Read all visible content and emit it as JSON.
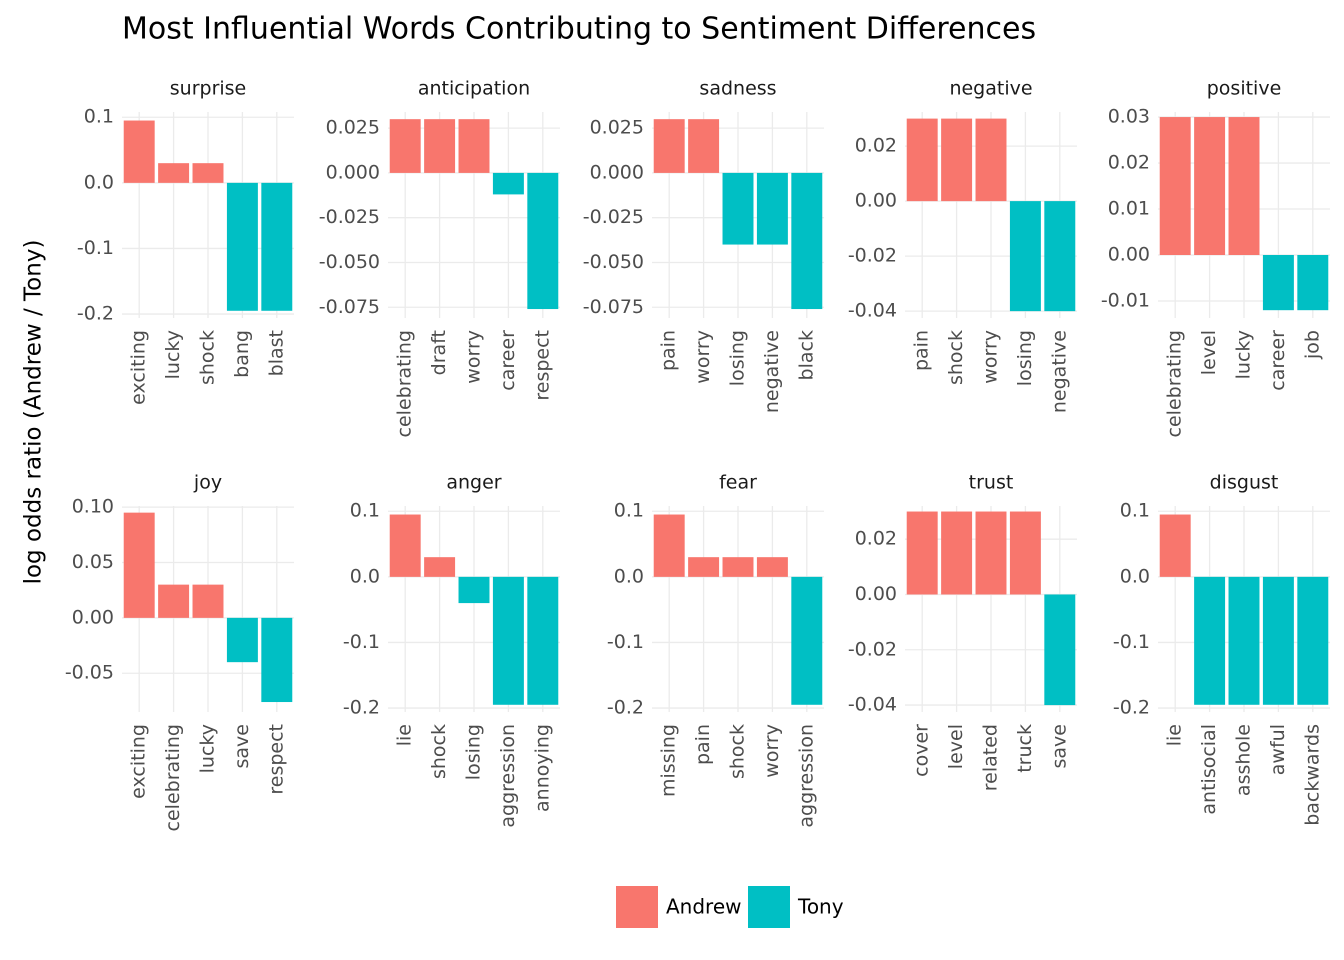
{
  "title": "Most Influential Words Contributing to Sentiment Differences",
  "y_label": "log odds ratio (Andrew / Tony)",
  "chart_data": [
    {
      "type": "bar",
      "title": "surprise",
      "categories": [
        "exciting",
        "lucky",
        "shock",
        "bang",
        "blast"
      ],
      "series": [
        {
          "name": "Andrew",
          "color": "#F8766D",
          "values": [
            0.095,
            0.03,
            0.03,
            null,
            null
          ]
        },
        {
          "name": "Tony",
          "color": "#00BFC4",
          "values": [
            null,
            null,
            null,
            -0.195,
            -0.195
          ]
        }
      ],
      "ylim": [
        -0.206,
        0.108
      ],
      "yticks": [
        0.1,
        {
          "value": 0,
          "label": "0.0"
        },
        -0.1,
        -0.2
      ]
    },
    {
      "type": "bar",
      "title": "anticipation",
      "categories": [
        "celebrating",
        "draft",
        "worry",
        "career",
        "respect"
      ],
      "series": [
        {
          "name": "Andrew",
          "color": "#F8766D",
          "values": [
            0.03,
            0.03,
            0.03,
            null,
            null
          ]
        },
        {
          "name": "Tony",
          "color": "#00BFC4",
          "values": [
            null,
            null,
            null,
            -0.012,
            -0.076
          ]
        }
      ],
      "ylim": [
        -0.081,
        0.034
      ],
      "yticks": [
        0.025,
        {
          "value": 0,
          "label": "0.000"
        },
        -0.025,
        {
          "value": -0.05,
          "label": "-0.050"
        },
        -0.075
      ]
    },
    {
      "type": "bar",
      "title": "sadness",
      "categories": [
        "pain",
        "worry",
        "losing",
        "negative",
        "black"
      ],
      "series": [
        {
          "name": "Andrew",
          "color": "#F8766D",
          "values": [
            0.03,
            0.03,
            null,
            null,
            null
          ]
        },
        {
          "name": "Tony",
          "color": "#00BFC4",
          "values": [
            null,
            null,
            -0.04,
            -0.04,
            -0.076
          ]
        }
      ],
      "ylim": [
        -0.081,
        0.034
      ],
      "yticks": [
        0.025,
        {
          "value": 0,
          "label": "0.000"
        },
        -0.025,
        {
          "value": -0.05,
          "label": "-0.050"
        },
        -0.075
      ]
    },
    {
      "type": "bar",
      "title": "negative",
      "categories": [
        "pain",
        "shock",
        "worry",
        "losing",
        "negative"
      ],
      "series": [
        {
          "name": "Andrew",
          "color": "#F8766D",
          "values": [
            0.03,
            0.03,
            0.03,
            null,
            null
          ]
        },
        {
          "name": "Tony",
          "color": "#00BFC4",
          "values": [
            null,
            null,
            null,
            -0.04,
            -0.04
          ]
        }
      ],
      "ylim": [
        -0.0425,
        0.0324
      ],
      "yticks": [
        0.02,
        {
          "value": 0,
          "label": "0.00"
        },
        -0.02,
        -0.04
      ]
    },
    {
      "type": "bar",
      "title": "positive",
      "categories": [
        "celebrating",
        "level",
        "lucky",
        "career",
        "job"
      ],
      "series": [
        {
          "name": "Andrew",
          "color": "#F8766D",
          "values": [
            0.03,
            0.03,
            0.03,
            null,
            null
          ]
        },
        {
          "name": "Tony",
          "color": "#00BFC4",
          "values": [
            null,
            null,
            null,
            -0.012,
            -0.012
          ]
        }
      ],
      "ylim": [
        -0.0137,
        0.0311
      ],
      "yticks": [
        0.03,
        0.02,
        0.01,
        {
          "value": 0,
          "label": "0.00"
        },
        -0.01
      ]
    },
    {
      "type": "bar",
      "title": "joy",
      "categories": [
        "exciting",
        "celebrating",
        "lucky",
        "save",
        "respect"
      ],
      "series": [
        {
          "name": "Andrew",
          "color": "#F8766D",
          "values": [
            0.095,
            0.03,
            0.03,
            null,
            null
          ]
        },
        {
          "name": "Tony",
          "color": "#00BFC4",
          "values": [
            null,
            null,
            null,
            -0.04,
            -0.076
          ]
        }
      ],
      "ylim": [
        -0.085,
        0.101
      ],
      "yticks": [
        {
          "value": 0.1,
          "label": "0.10"
        },
        0.05,
        {
          "value": 0,
          "label": "0.00"
        },
        -0.05
      ]
    },
    {
      "type": "bar",
      "title": "anger",
      "categories": [
        "lie",
        "shock",
        "losing",
        "aggression",
        "annoying"
      ],
      "series": [
        {
          "name": "Andrew",
          "color": "#F8766D",
          "values": [
            0.095,
            0.03,
            null,
            null,
            null
          ]
        },
        {
          "name": "Tony",
          "color": "#00BFC4",
          "values": [
            null,
            null,
            -0.04,
            -0.195,
            -0.195
          ]
        }
      ],
      "ylim": [
        -0.206,
        0.108
      ],
      "yticks": [
        0.1,
        {
          "value": 0,
          "label": "0.0"
        },
        -0.1,
        -0.2
      ]
    },
    {
      "type": "bar",
      "title": "fear",
      "categories": [
        "missing",
        "pain",
        "shock",
        "worry",
        "aggression"
      ],
      "series": [
        {
          "name": "Andrew",
          "color": "#F8766D",
          "values": [
            0.095,
            0.03,
            0.03,
            0.03,
            null
          ]
        },
        {
          "name": "Tony",
          "color": "#00BFC4",
          "values": [
            null,
            null,
            null,
            null,
            -0.195
          ]
        }
      ],
      "ylim": [
        -0.206,
        0.108
      ],
      "yticks": [
        0.1,
        {
          "value": 0,
          "label": "0.0"
        },
        -0.1,
        -0.2
      ]
    },
    {
      "type": "bar",
      "title": "trust",
      "categories": [
        "cover",
        "level",
        "related",
        "truck",
        "save"
      ],
      "series": [
        {
          "name": "Andrew",
          "color": "#F8766D",
          "values": [
            0.03,
            0.03,
            0.03,
            0.03,
            null
          ]
        },
        {
          "name": "Tony",
          "color": "#00BFC4",
          "values": [
            null,
            null,
            null,
            null,
            -0.04
          ]
        }
      ],
      "ylim": [
        -0.0425,
        0.032
      ],
      "yticks": [
        0.02,
        {
          "value": 0,
          "label": "0.00"
        },
        -0.02,
        -0.04
      ]
    },
    {
      "type": "bar",
      "title": "disgust",
      "categories": [
        "lie",
        "antisocial",
        "asshole",
        "awful",
        "backwards"
      ],
      "series": [
        {
          "name": "Andrew",
          "color": "#F8766D",
          "values": [
            0.095,
            null,
            null,
            null,
            null
          ]
        },
        {
          "name": "Tony",
          "color": "#00BFC4",
          "values": [
            null,
            -0.195,
            -0.195,
            -0.195,
            -0.195
          ]
        }
      ],
      "ylim": [
        -0.206,
        0.108
      ],
      "yticks": [
        0.1,
        {
          "value": 0,
          "label": "0.0"
        },
        -0.1,
        -0.2
      ]
    }
  ]
}
